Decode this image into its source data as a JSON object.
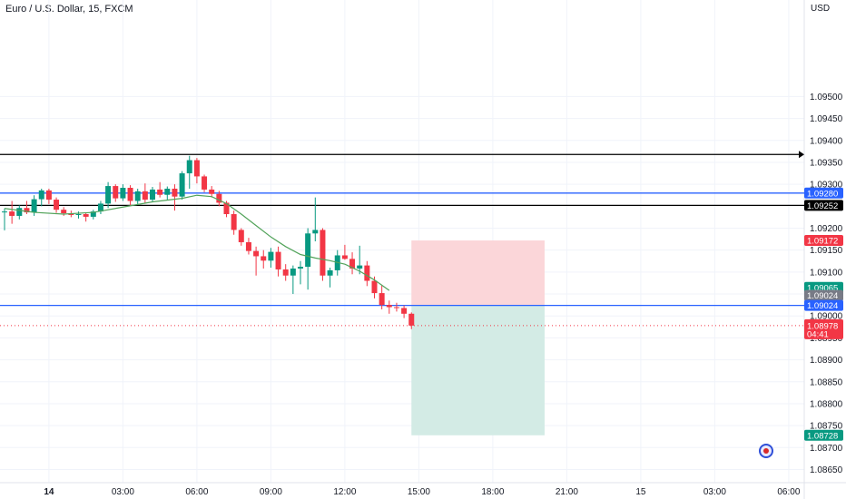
{
  "header": {
    "symbol": "Euro / U.S. Dollar, 15, FXCM",
    "currency": "USD"
  },
  "colors": {
    "up": "#089981",
    "down": "#f23645",
    "ma": "#52a35a",
    "hline_black": "#000000",
    "hline_blue": "#2962ff",
    "stop_zone": "#fbd6d9",
    "target_zone": "#d3ebe5",
    "grid": "#f0f3fa",
    "axis_text": "#131722"
  },
  "chart_data": {
    "type": "candlestick",
    "title": "Euro / U.S. Dollar, 15, FXCM",
    "interval": "15",
    "ylim": [
      1.0862,
      1.0972
    ],
    "y_ticks": [
      "1.08650",
      "1.08700",
      "1.08750",
      "1.08800",
      "1.08850",
      "1.08900",
      "1.08950",
      "1.09000",
      "1.09050",
      "1.09100",
      "1.09150",
      "1.09200",
      "1.09250",
      "1.09300",
      "1.09350",
      "1.09400",
      "1.09450",
      "1.09500"
    ],
    "x_ticks": [
      {
        "label": "14",
        "bar": 6,
        "bold": true
      },
      {
        "label": "03:00",
        "bar": 16
      },
      {
        "label": "06:00",
        "bar": 26
      },
      {
        "label": "09:00",
        "bar": 36
      },
      {
        "label": "12:00",
        "bar": 46
      },
      {
        "label": "15:00",
        "bar": 56
      },
      {
        "label": "18:00",
        "bar": 66
      },
      {
        "label": "21:00",
        "bar": 76
      },
      {
        "label": "15",
        "bar": 86
      },
      {
        "label": "03:00",
        "bar": 96
      },
      {
        "label": "06:00",
        "bar": 106
      }
    ],
    "candles": [
      {
        "o": 1.09237,
        "h": 1.09245,
        "l": 1.09195,
        "c": 1.09238
      },
      {
        "o": 1.09238,
        "h": 1.09262,
        "l": 1.0921,
        "c": 1.09228
      },
      {
        "o": 1.09228,
        "h": 1.09252,
        "l": 1.0922,
        "c": 1.09246
      },
      {
        "o": 1.09246,
        "h": 1.09262,
        "l": 1.09232,
        "c": 1.09236
      },
      {
        "o": 1.09236,
        "h": 1.09275,
        "l": 1.09228,
        "c": 1.09266
      },
      {
        "o": 1.09266,
        "h": 1.0929,
        "l": 1.0925,
        "c": 1.09286
      },
      {
        "o": 1.09286,
        "h": 1.0929,
        "l": 1.09255,
        "c": 1.09265
      },
      {
        "o": 1.09265,
        "h": 1.0927,
        "l": 1.09235,
        "c": 1.09242
      },
      {
        "o": 1.09242,
        "h": 1.09248,
        "l": 1.09228,
        "c": 1.09234
      },
      {
        "o": 1.09234,
        "h": 1.0924,
        "l": 1.09225,
        "c": 1.0923
      },
      {
        "o": 1.0923,
        "h": 1.09238,
        "l": 1.09222,
        "c": 1.09232
      },
      {
        "o": 1.09232,
        "h": 1.09236,
        "l": 1.09215,
        "c": 1.09226
      },
      {
        "o": 1.09226,
        "h": 1.09242,
        "l": 1.0922,
        "c": 1.09238
      },
      {
        "o": 1.09238,
        "h": 1.09262,
        "l": 1.09232,
        "c": 1.09256
      },
      {
        "o": 1.09256,
        "h": 1.09305,
        "l": 1.09246,
        "c": 1.09296
      },
      {
        "o": 1.09296,
        "h": 1.093,
        "l": 1.0926,
        "c": 1.09268
      },
      {
        "o": 1.09268,
        "h": 1.093,
        "l": 1.09262,
        "c": 1.09292
      },
      {
        "o": 1.09292,
        "h": 1.09298,
        "l": 1.0925,
        "c": 1.09262
      },
      {
        "o": 1.09262,
        "h": 1.0929,
        "l": 1.09255,
        "c": 1.09284
      },
      {
        "o": 1.09284,
        "h": 1.09302,
        "l": 1.09258,
        "c": 1.09265
      },
      {
        "o": 1.09265,
        "h": 1.09294,
        "l": 1.0926,
        "c": 1.09288
      },
      {
        "o": 1.09288,
        "h": 1.09305,
        "l": 1.0927,
        "c": 1.09276
      },
      {
        "o": 1.09276,
        "h": 1.09295,
        "l": 1.09264,
        "c": 1.0929
      },
      {
        "o": 1.0929,
        "h": 1.093,
        "l": 1.0924,
        "c": 1.09272
      },
      {
        "o": 1.09272,
        "h": 1.0933,
        "l": 1.09265,
        "c": 1.09325
      },
      {
        "o": 1.09325,
        "h": 1.09365,
        "l": 1.0929,
        "c": 1.09355
      },
      {
        "o": 1.09355,
        "h": 1.0936,
        "l": 1.09302,
        "c": 1.09318
      },
      {
        "o": 1.09318,
        "h": 1.09322,
        "l": 1.09282,
        "c": 1.09288
      },
      {
        "o": 1.09288,
        "h": 1.09296,
        "l": 1.0927,
        "c": 1.09278
      },
      {
        "o": 1.09278,
        "h": 1.09285,
        "l": 1.0925,
        "c": 1.09258
      },
      {
        "o": 1.09258,
        "h": 1.09262,
        "l": 1.09225,
        "c": 1.09232
      },
      {
        "o": 1.09232,
        "h": 1.0924,
        "l": 1.09185,
        "c": 1.09196
      },
      {
        "o": 1.09196,
        "h": 1.092,
        "l": 1.0916,
        "c": 1.09168
      },
      {
        "o": 1.09168,
        "h": 1.09178,
        "l": 1.0914,
        "c": 1.09148
      },
      {
        "o": 1.09148,
        "h": 1.09158,
        "l": 1.09092,
        "c": 1.09136
      },
      {
        "o": 1.09136,
        "h": 1.0915,
        "l": 1.09108,
        "c": 1.09126
      },
      {
        "o": 1.09126,
        "h": 1.09155,
        "l": 1.0911,
        "c": 1.09146
      },
      {
        "o": 1.09146,
        "h": 1.09158,
        "l": 1.0909,
        "c": 1.09106
      },
      {
        "o": 1.09106,
        "h": 1.09118,
        "l": 1.0908,
        "c": 1.09092
      },
      {
        "o": 1.09092,
        "h": 1.09115,
        "l": 1.0905,
        "c": 1.09108
      },
      {
        "o": 1.09108,
        "h": 1.09125,
        "l": 1.09072,
        "c": 1.09112
      },
      {
        "o": 1.09112,
        "h": 1.092,
        "l": 1.0906,
        "c": 1.09188
      },
      {
        "o": 1.09188,
        "h": 1.0927,
        "l": 1.0917,
        "c": 1.09196
      },
      {
        "o": 1.09196,
        "h": 1.092,
        "l": 1.0908,
        "c": 1.09092
      },
      {
        "o": 1.09092,
        "h": 1.0911,
        "l": 1.09065,
        "c": 1.09104
      },
      {
        "o": 1.09104,
        "h": 1.0915,
        "l": 1.09092,
        "c": 1.09138
      },
      {
        "o": 1.09138,
        "h": 1.09162,
        "l": 1.09128,
        "c": 1.0913
      },
      {
        "o": 1.0913,
        "h": 1.09145,
        "l": 1.09095,
        "c": 1.09108
      },
      {
        "o": 1.09108,
        "h": 1.0916,
        "l": 1.09095,
        "c": 1.09115
      },
      {
        "o": 1.09115,
        "h": 1.09125,
        "l": 1.09068,
        "c": 1.0908
      },
      {
        "o": 1.0908,
        "h": 1.0909,
        "l": 1.0904,
        "c": 1.09052
      },
      {
        "o": 1.09052,
        "h": 1.0907,
        "l": 1.09015,
        "c": 1.09025
      },
      {
        "o": 1.09025,
        "h": 1.09035,
        "l": 1.09005,
        "c": 1.0902
      },
      {
        "o": 1.0902,
        "h": 1.0903,
        "l": 1.0901,
        "c": 1.09018
      },
      {
        "o": 1.09018,
        "h": 1.09024,
        "l": 1.08995,
        "c": 1.09005
      },
      {
        "o": 1.09005,
        "h": 1.09008,
        "l": 1.0897,
        "c": 1.08978
      }
    ],
    "ma_line": [
      [
        0,
        1.09245
      ],
      [
        4,
        1.09236
      ],
      [
        8,
        1.09232
      ],
      [
        12,
        1.09236
      ],
      [
        16,
        1.09248
      ],
      [
        20,
        1.0926
      ],
      [
        24,
        1.09268
      ],
      [
        26,
        1.09275
      ],
      [
        28,
        1.09272
      ],
      [
        30,
        1.09256
      ],
      [
        32,
        1.09232
      ],
      [
        34,
        1.09206
      ],
      [
        36,
        1.0918
      ],
      [
        38,
        1.09158
      ],
      [
        40,
        1.0914
      ],
      [
        42,
        1.09132
      ],
      [
        44,
        1.09126
      ],
      [
        46,
        1.09118
      ],
      [
        48,
        1.09102
      ],
      [
        50,
        1.09082
      ],
      [
        52,
        1.09058
      ]
    ],
    "horizontal_lines": [
      {
        "price": 1.09368,
        "color": "black",
        "label": "",
        "arrow": true
      },
      {
        "price": 1.0928,
        "color": "blue",
        "label": "1.09280"
      },
      {
        "price": 1.09252,
        "color": "black",
        "label": "1.09252"
      },
      {
        "price": 1.09024,
        "color": "blue",
        "label": "1.09024"
      }
    ],
    "current_price": {
      "price": 1.08978,
      "label": "1.08978",
      "countdown": "04:41"
    },
    "position": {
      "bar_start": 55,
      "bar_end": 73,
      "stop_price": 1.09172,
      "entry_price": 1.09024,
      "target_price": 1.08728,
      "stop_label": "1.09172",
      "entry_label": "1.09024",
      "target_label": "1.08728",
      "extra_label": "1.09065"
    }
  }
}
